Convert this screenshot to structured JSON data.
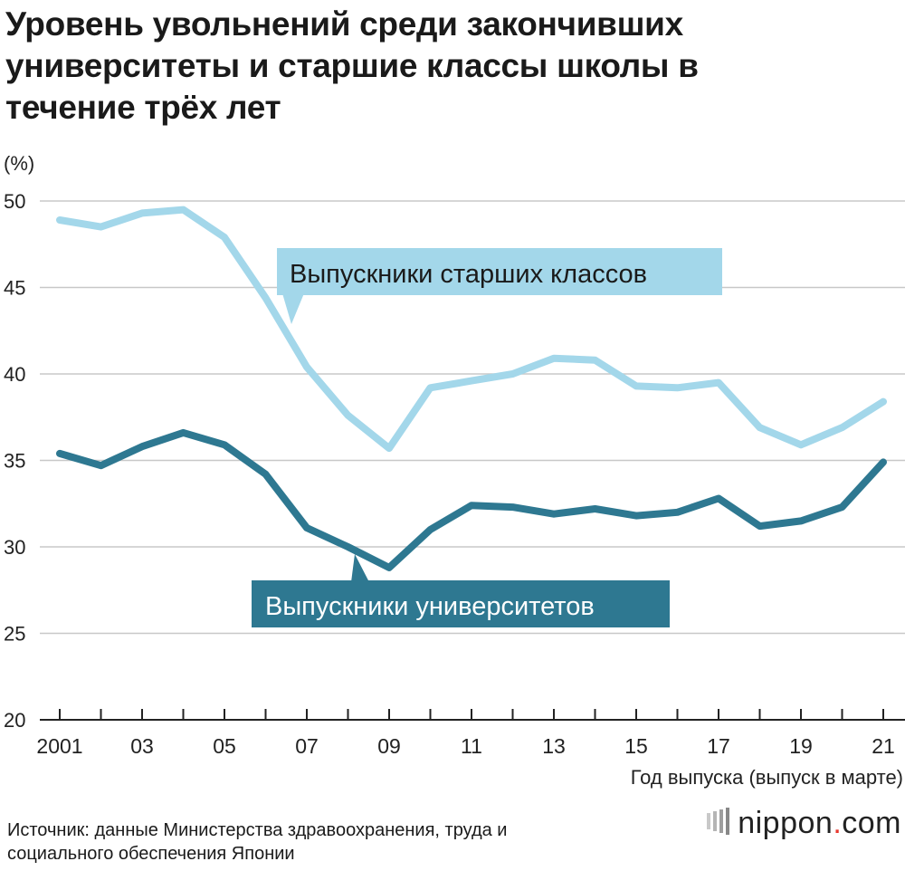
{
  "title_lines": [
    "Уровень увольнений среди закончивших",
    "университеты и старшие классы школы в",
    "течение трёх лет"
  ],
  "source_lines": [
    "Источник: данные Министерства здравоохранения, труда и",
    "социального обеспечения Японии"
  ],
  "brand": {
    "name": "nippon",
    "dot": ".",
    "tld": "com"
  },
  "colors": {
    "highschool": "#a3d7ea",
    "university": "#2e7891",
    "grid": "#c8c8c8",
    "axis": "#222222"
  },
  "chart_data": {
    "type": "line",
    "ylabel": "(%)",
    "xlabel": "Год выпуска (выпуск в марте)",
    "ylim": [
      20,
      50
    ],
    "yticks": [
      20,
      25,
      30,
      35,
      40,
      45,
      50
    ],
    "x": [
      2001,
      2002,
      2003,
      2004,
      2005,
      2006,
      2007,
      2008,
      2009,
      2010,
      2011,
      2012,
      2013,
      2014,
      2015,
      2016,
      2017,
      2018,
      2019,
      2020,
      2021
    ],
    "xtick_labels": [
      {
        "x": 2001,
        "label": "2001"
      },
      {
        "x": 2003,
        "label": "03"
      },
      {
        "x": 2005,
        "label": "05"
      },
      {
        "x": 2007,
        "label": "07"
      },
      {
        "x": 2009,
        "label": "09"
      },
      {
        "x": 2011,
        "label": "11"
      },
      {
        "x": 2013,
        "label": "13"
      },
      {
        "x": 2015,
        "label": "15"
      },
      {
        "x": 2017,
        "label": "17"
      },
      {
        "x": 2019,
        "label": "19"
      },
      {
        "x": 2021,
        "label": "21"
      }
    ],
    "series": [
      {
        "name": "Выпускники старших классов",
        "values": [
          48.9,
          48.5,
          49.3,
          49.5,
          47.9,
          44.4,
          40.4,
          37.6,
          35.7,
          39.2,
          39.6,
          40.0,
          40.9,
          40.8,
          39.3,
          39.2,
          39.5,
          36.9,
          35.9,
          36.9,
          38.4
        ]
      },
      {
        "name": "Выпускники университетов",
        "values": [
          35.4,
          34.7,
          35.8,
          36.6,
          35.9,
          34.2,
          31.1,
          30.0,
          28.8,
          31.0,
          32.4,
          32.3,
          31.9,
          32.2,
          31.8,
          32.0,
          32.8,
          31.2,
          31.5,
          32.3,
          34.9
        ]
      }
    ],
    "grid": true,
    "legend": "inline-callouts"
  }
}
